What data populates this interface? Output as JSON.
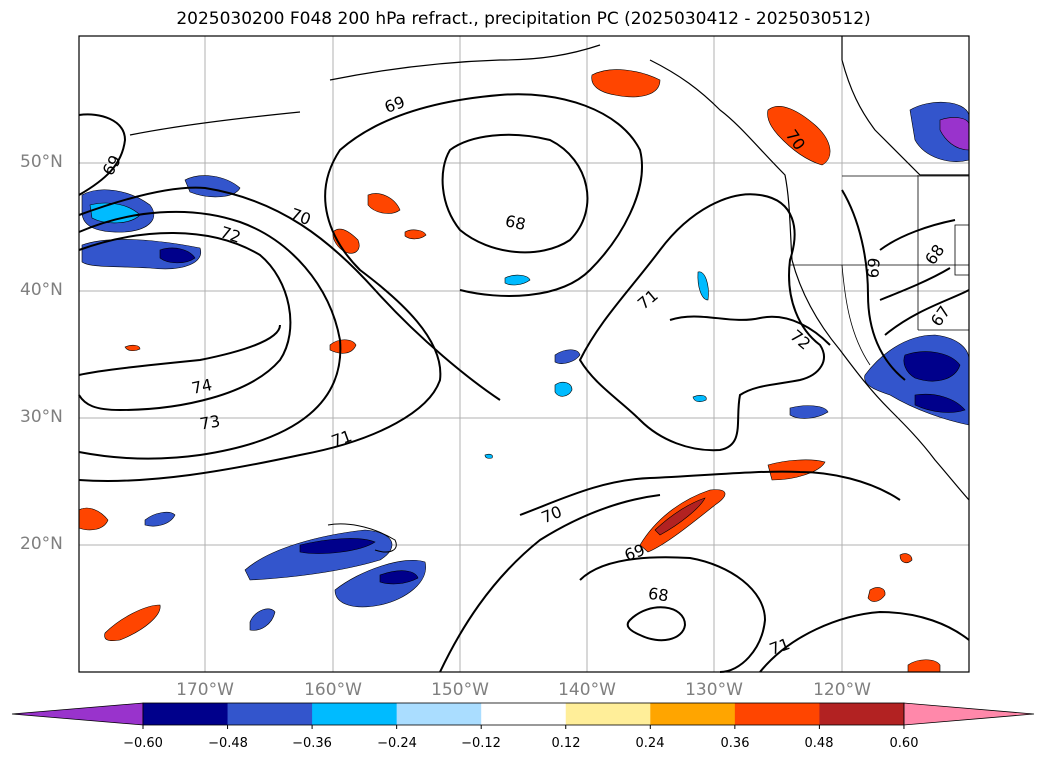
{
  "title": "2025030200 F048 200 hPa refract., precipitation PC (2025030412 - 2025030512)",
  "latitude_labels": [
    "50°N",
    "40°N",
    "30°N",
    "20°N"
  ],
  "longitude_labels": [
    "170°W",
    "160°W",
    "150°W",
    "140°W",
    "130°W",
    "120°W"
  ],
  "contour_labels": [
    "69",
    "72",
    "70",
    "69",
    "68",
    "74",
    "73",
    "71",
    "70",
    "69",
    "68",
    "71",
    "71",
    "70",
    "72",
    "69",
    "68",
    "67"
  ],
  "colorbar": {
    "ticks": [
      "−0.60",
      "−0.48",
      "−0.36",
      "−0.24",
      "−0.12",
      "0.12",
      "0.24",
      "0.36",
      "0.48",
      "0.60"
    ],
    "colors": [
      "#9933cc",
      "#00008b",
      "#3355cc",
      "#00bbff",
      "#aaddff",
      "#ffffff",
      "#ffee99",
      "#ffa500",
      "#ff4500",
      "#b22222",
      "#ff88aa"
    ]
  }
}
